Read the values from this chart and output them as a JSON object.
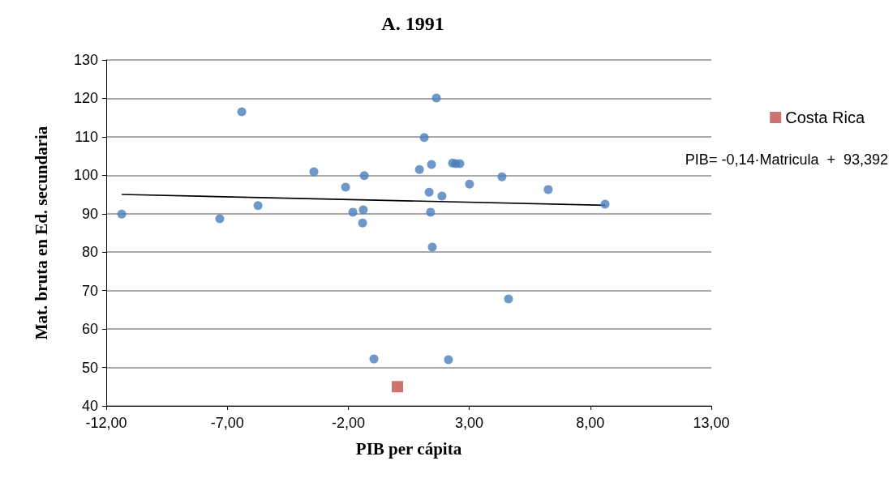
{
  "chart_data": {
    "type": "scatter",
    "title": "A. 1991",
    "xlabel": "PIB per cápita",
    "ylabel": "Mat. bruta en Ed. secundaria",
    "xlim": [
      -12,
      13
    ],
    "xticks": [
      {
        "value": -12,
        "label": "-12,00"
      },
      {
        "value": -7,
        "label": "-7,00"
      },
      {
        "value": -2,
        "label": "-2,00"
      },
      {
        "value": 3,
        "label": "3,00"
      },
      {
        "value": 8,
        "label": "8,00"
      },
      {
        "value": 13,
        "label": "13,00"
      }
    ],
    "ylim": [
      40,
      130
    ],
    "yticks": [
      40,
      50,
      60,
      70,
      80,
      90,
      100,
      110,
      120,
      130
    ],
    "grid": "y",
    "legend": "right",
    "marker": "circle",
    "annotations": [
      "PIB= -0,14·Matricula  +  93,392"
    ],
    "series": [
      {
        "color": "#4a7ebb",
        "x": [
          -11.36,
          -7.31,
          -6.4,
          -5.73,
          -3.42,
          -2.11,
          -1.81,
          -1.38,
          -1.41,
          -1.34,
          -0.94,
          0.94,
          1.14,
          1.34,
          1.44,
          1.4,
          1.47,
          1.64,
          1.87,
          2.14,
          2.31,
          2.44,
          2.61,
          3.01,
          4.35,
          4.62,
          6.26,
          8.61
        ],
        "values": [
          89.9,
          88.7,
          116.5,
          92.1,
          100.9,
          96.9,
          90.4,
          91.0,
          87.6,
          99.9,
          52.2,
          101.5,
          109.8,
          95.6,
          102.8,
          90.4,
          81.3,
          120.1,
          94.6,
          52.0,
          103.2,
          103.0,
          103.0,
          97.7,
          99.6,
          67.8,
          96.3,
          92.5
        ]
      },
      {
        "name": "Costa Rica",
        "color": "#c0504d",
        "marker": "square",
        "x": [
          0.03
        ],
        "values": [
          45.0
        ]
      },
      {
        "type": "line",
        "color": "#000000",
        "marker": "none",
        "x": [
          -11.36,
          8.61
        ],
        "values": [
          95.0,
          92.2
        ]
      }
    ]
  }
}
